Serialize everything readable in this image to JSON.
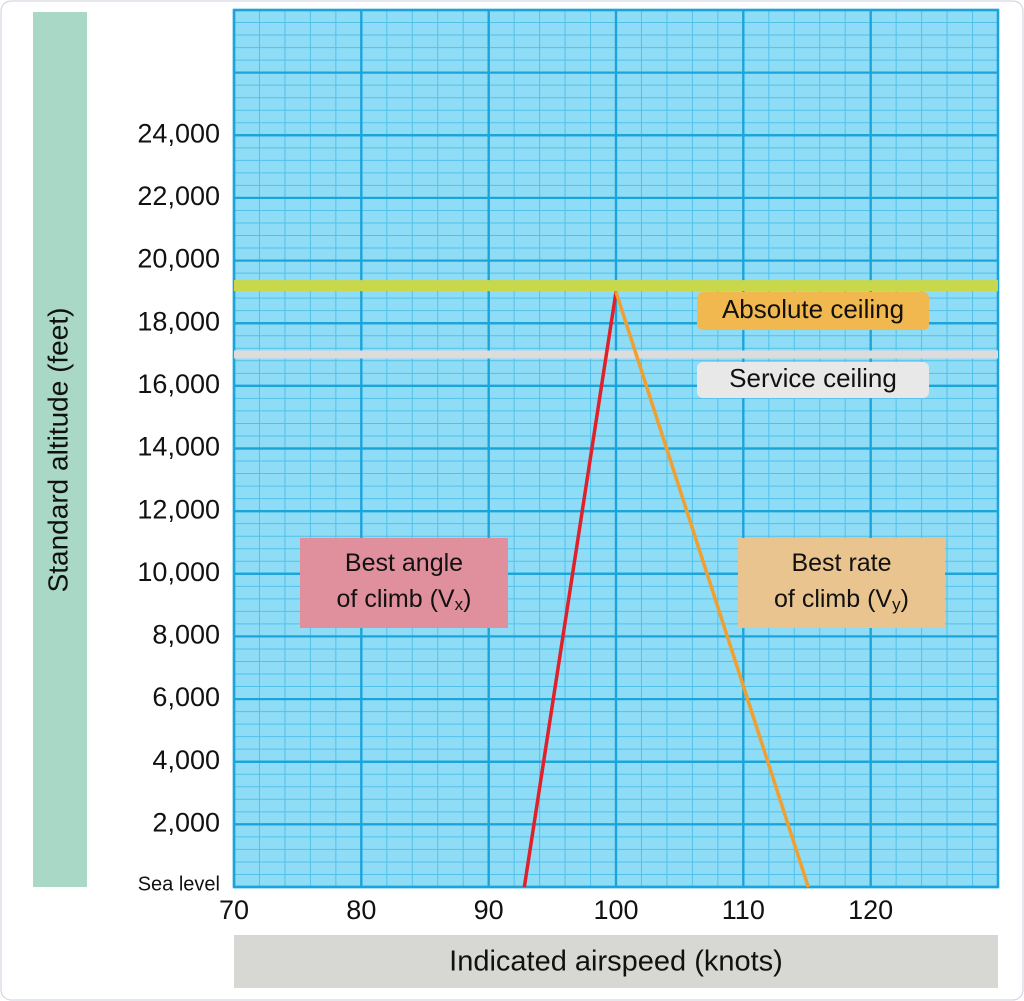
{
  "chart_data": {
    "type": "line",
    "x_label": "Indicated airspeed (knots)",
    "y_label": "Standard altitude (feet)",
    "xlim": [
      70,
      130
    ],
    "xticks": [
      70,
      80,
      90,
      100,
      110,
      120
    ],
    "ylim": [
      0,
      28000
    ],
    "yticks": [
      {
        "value": 0,
        "label": "Sea level"
      },
      {
        "value": 2000,
        "label": "2,000"
      },
      {
        "value": 4000,
        "label": "4,000"
      },
      {
        "value": 6000,
        "label": "6,000"
      },
      {
        "value": 8000,
        "label": "8,000"
      },
      {
        "value": 10000,
        "label": "10,000"
      },
      {
        "value": 12000,
        "label": "12,000"
      },
      {
        "value": 14000,
        "label": "14,000"
      },
      {
        "value": 16000,
        "label": "16,000"
      },
      {
        "value": 18000,
        "label": "18,000"
      },
      {
        "value": 20000,
        "label": "20,000"
      },
      {
        "value": 22000,
        "label": "22,000"
      },
      {
        "value": 24000,
        "label": "24,000"
      }
    ],
    "grid": true,
    "minor_grid": {
      "x": 2,
      "y": 400
    },
    "series": [
      {
        "color": "#e0202a",
        "x": [
          92.8,
          100
        ],
        "values": [
          0,
          19000
        ]
      },
      {
        "color": "#f0a030",
        "x": [
          100,
          115.1
        ],
        "values": [
          19000,
          0
        ]
      }
    ],
    "reference_lines": [
      {
        "value": 19200,
        "label": "Absolute ceiling",
        "color": "#c8d84a",
        "label_color": "#f0b84f"
      },
      {
        "value": 17000,
        "label": "Service ceiling",
        "color": "#dcdcdc",
        "label_color": "#e8e8e8"
      }
    ],
    "annotations": [
      {
        "lines": [
          "Best angle",
          "of climb (V"
        ],
        "subscript": "x",
        "suffix": ")",
        "color": "#e0909c"
      },
      {
        "lines": [
          "Best rate",
          "of climb (V"
        ],
        "subscript": "y",
        "suffix": ")",
        "color": "#e9c48f"
      }
    ]
  }
}
